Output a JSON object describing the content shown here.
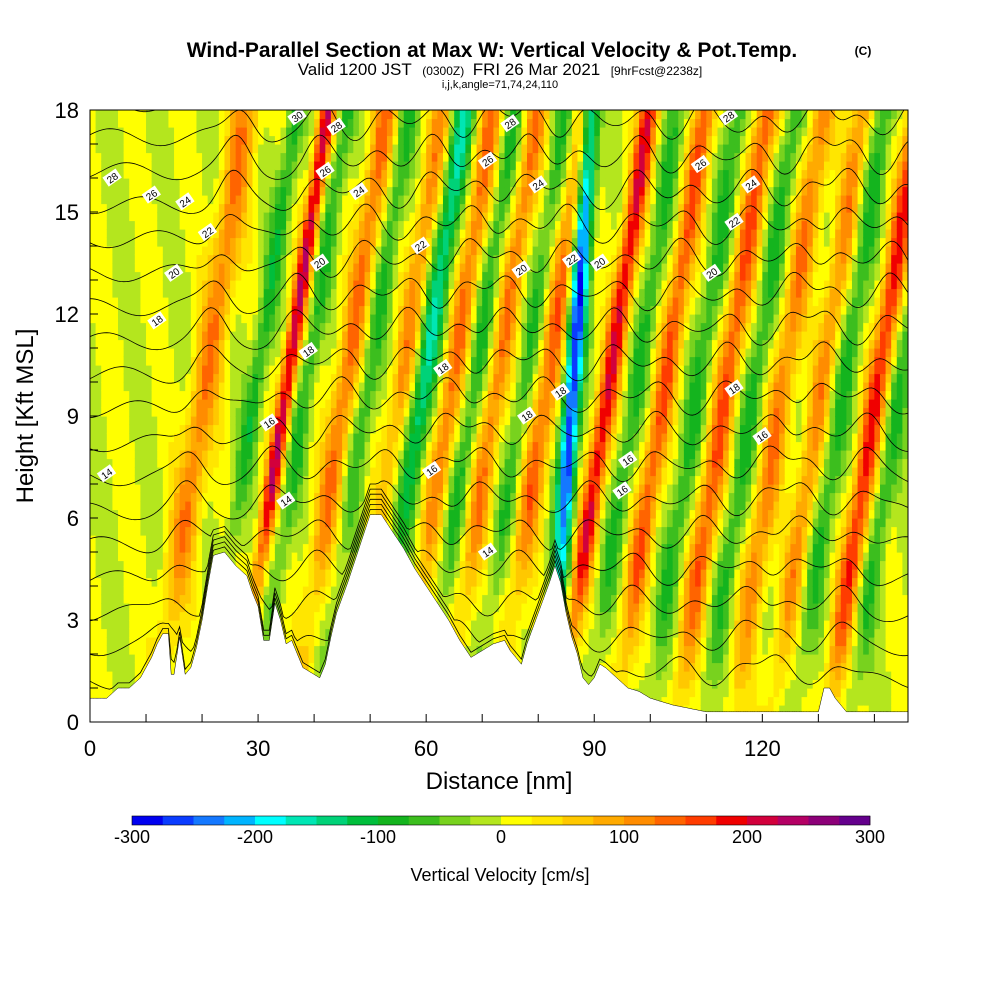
{
  "chart_data": {
    "type": "heatmap",
    "title": "Wind-Parallel Section at Max W: Vertical Velocity & Pot.Temp.",
    "title_badge": "(C)",
    "subtitle_parts": [
      "Valid 1200 JST",
      "(0300Z)",
      "FRI 26 Mar 2021",
      "[9hrFcst@2238z]"
    ],
    "subtitle2": "i,j,k,angle=71,74,24,110",
    "xlabel": "Distance [nm]",
    "ylabel": "Height [Kft MSL]",
    "xlim": [
      0,
      146
    ],
    "ylim": [
      0,
      18
    ],
    "x_ticks": [
      "0",
      "30",
      "60",
      "90",
      "120"
    ],
    "y_ticks": [
      "0",
      "3",
      "6",
      "9",
      "12",
      "15",
      "18"
    ],
    "colorbar": {
      "label": "Vertical Velocity [cm/s]",
      "min": -300,
      "max": 300,
      "step": 25,
      "ticks": [
        "-300",
        "-200",
        "-100",
        "0",
        "100",
        "200",
        "300"
      ],
      "colors": [
        "#0000f0",
        "#0a3cff",
        "#1478ff",
        "#00b4ff",
        "#00ffff",
        "#00e6b4",
        "#00d278",
        "#00be3c",
        "#14b41e",
        "#3cbe1e",
        "#78d21e",
        "#b4e61e",
        "#ffff00",
        "#ffe600",
        "#ffc800",
        "#ffaa00",
        "#ff8c00",
        "#ff6400",
        "#ff3c00",
        "#f00000",
        "#d2003c",
        "#b40064",
        "#8c0078",
        "#64008c"
      ]
    },
    "terrain_kft": [
      [
        0,
        0.7
      ],
      [
        3,
        0.7
      ],
      [
        5,
        1.0
      ],
      [
        7,
        1.0
      ],
      [
        9,
        1.3
      ],
      [
        10,
        1.6
      ],
      [
        11,
        1.9
      ],
      [
        12,
        2.3
      ],
      [
        13,
        2.6
      ],
      [
        14,
        2.6
      ],
      [
        14.5,
        1.4
      ],
      [
        15,
        1.4
      ],
      [
        16,
        2.5
      ],
      [
        17,
        1.4
      ],
      [
        18,
        1.6
      ],
      [
        19,
        2.2
      ],
      [
        20,
        3.0
      ],
      [
        21,
        4.0
      ],
      [
        22,
        4.9
      ],
      [
        24,
        5.0
      ],
      [
        26,
        4.6
      ],
      [
        28,
        4.3
      ],
      [
        29,
        3.8
      ],
      [
        30,
        3.4
      ],
      [
        31,
        2.4
      ],
      [
        32,
        2.4
      ],
      [
        33,
        3.5
      ],
      [
        34,
        3.0
      ],
      [
        35,
        2.3
      ],
      [
        36,
        2.4
      ],
      [
        38,
        1.6
      ],
      [
        40,
        1.4
      ],
      [
        41,
        1.3
      ],
      [
        42,
        1.7
      ],
      [
        43,
        2.5
      ],
      [
        44,
        3.2
      ],
      [
        46,
        4.1
      ],
      [
        48,
        5.1
      ],
      [
        50,
        6.1
      ],
      [
        52,
        6.1
      ],
      [
        54,
        5.6
      ],
      [
        56,
        5.1
      ],
      [
        58,
        4.5
      ],
      [
        60,
        4.0
      ],
      [
        62,
        3.5
      ],
      [
        64,
        3.0
      ],
      [
        66,
        2.4
      ],
      [
        68,
        1.9
      ],
      [
        70,
        2.1
      ],
      [
        72,
        2.3
      ],
      [
        74,
        2.4
      ],
      [
        75,
        2.1
      ],
      [
        76,
        1.9
      ],
      [
        77,
        1.7
      ],
      [
        78,
        2.3
      ],
      [
        80,
        3.2
      ],
      [
        82,
        4.1
      ],
      [
        83,
        4.6
      ],
      [
        84,
        4.1
      ],
      [
        85,
        3.2
      ],
      [
        86,
        2.5
      ],
      [
        87,
        2.0
      ],
      [
        88,
        1.3
      ],
      [
        89,
        1.1
      ],
      [
        90,
        1.3
      ],
      [
        91,
        1.7
      ],
      [
        92,
        1.6
      ],
      [
        94,
        1.3
      ],
      [
        96,
        1.0
      ],
      [
        98,
        0.9
      ],
      [
        100,
        0.7
      ],
      [
        102,
        0.6
      ],
      [
        104,
        0.5
      ],
      [
        110,
        0.3
      ],
      [
        115,
        0.3
      ],
      [
        120,
        0.3
      ],
      [
        130,
        0.3
      ],
      [
        131,
        1.0
      ],
      [
        132,
        1.0
      ],
      [
        133,
        0.7
      ],
      [
        134,
        0.5
      ],
      [
        135,
        0.3
      ],
      [
        146,
        0.3
      ]
    ],
    "updrafts": [
      {
        "x": 18,
        "amp": 120,
        "width": 2.6
      },
      {
        "x": 32.5,
        "amp": 220,
        "width": 1.4
      },
      {
        "x": 43,
        "amp": 130,
        "width": 2.2
      },
      {
        "x": 53,
        "amp": 110,
        "width": 2.0
      },
      {
        "x": 62,
        "amp": 130,
        "width": 2.0
      },
      {
        "x": 70,
        "amp": 120,
        "width": 2.0
      },
      {
        "x": 79,
        "amp": 140,
        "width": 2.2
      },
      {
        "x": 90,
        "amp": 200,
        "width": 1.8
      },
      {
        "x": 100,
        "amp": 150,
        "width": 2.0
      },
      {
        "x": 111,
        "amp": 150,
        "width": 2.2
      },
      {
        "x": 121,
        "amp": 120,
        "width": 2.2
      },
      {
        "x": 128,
        "amp": 110,
        "width": 2.0
      },
      {
        "x": 138,
        "amp": 180,
        "width": 2.0
      }
    ],
    "downdrafts": [
      {
        "x": 27,
        "amp": -90,
        "width": 1.6
      },
      {
        "x": 36,
        "amp": -80,
        "width": 1.6
      },
      {
        "x": 47,
        "amp": -80,
        "width": 1.8
      },
      {
        "x": 57,
        "amp": -150,
        "width": 2.0
      },
      {
        "x": 66,
        "amp": -80,
        "width": 1.8
      },
      {
        "x": 75,
        "amp": -70,
        "width": 1.8
      },
      {
        "x": 85,
        "amp": -280,
        "width": 1.6
      },
      {
        "x": 95,
        "amp": -80,
        "width": 1.8
      },
      {
        "x": 106,
        "amp": -80,
        "width": 2.0
      },
      {
        "x": 116,
        "amp": -80,
        "width": 2.0
      },
      {
        "x": 132,
        "amp": -80,
        "width": 2.0
      },
      {
        "x": 142,
        "amp": -80,
        "width": 1.8
      }
    ],
    "contour_labels": [
      {
        "text": "14",
        "x": 3,
        "y": 7.3
      },
      {
        "text": "14",
        "x": 35,
        "y": 6.5
      },
      {
        "text": "14",
        "x": 71,
        "y": 5.0
      },
      {
        "text": "16",
        "x": 32,
        "y": 8.8
      },
      {
        "text": "16",
        "x": 61,
        "y": 7.4
      },
      {
        "text": "16",
        "x": 96,
        "y": 7.7
      },
      {
        "text": "16",
        "x": 95,
        "y": 6.8
      },
      {
        "text": "16",
        "x": 120,
        "y": 8.4
      },
      {
        "text": "18",
        "x": 12,
        "y": 11.8
      },
      {
        "text": "18",
        "x": 39,
        "y": 10.9
      },
      {
        "text": "18",
        "x": 63,
        "y": 10.4
      },
      {
        "text": "18",
        "x": 78,
        "y": 9.0
      },
      {
        "text": "18",
        "x": 84,
        "y": 9.7
      },
      {
        "text": "18",
        "x": 115,
        "y": 9.8
      },
      {
        "text": "20",
        "x": 15,
        "y": 13.2
      },
      {
        "text": "20",
        "x": 41,
        "y": 13.5
      },
      {
        "text": "20",
        "x": 77,
        "y": 13.3
      },
      {
        "text": "20",
        "x": 91,
        "y": 13.5
      },
      {
        "text": "20",
        "x": 111,
        "y": 13.2
      },
      {
        "text": "22",
        "x": 21,
        "y": 14.4
      },
      {
        "text": "22",
        "x": 59,
        "y": 14.0
      },
      {
        "text": "22",
        "x": 86,
        "y": 13.6
      },
      {
        "text": "22",
        "x": 115,
        "y": 14.7
      },
      {
        "text": "24",
        "x": 17,
        "y": 15.3
      },
      {
        "text": "24",
        "x": 48,
        "y": 15.6
      },
      {
        "text": "24",
        "x": 80,
        "y": 15.8
      },
      {
        "text": "24",
        "x": 118,
        "y": 15.8
      },
      {
        "text": "26",
        "x": 11,
        "y": 15.5
      },
      {
        "text": "26",
        "x": 42,
        "y": 16.2
      },
      {
        "text": "26",
        "x": 71,
        "y": 16.5
      },
      {
        "text": "26",
        "x": 109,
        "y": 16.4
      },
      {
        "text": "28",
        "x": 4,
        "y": 16.0
      },
      {
        "text": "28",
        "x": 44,
        "y": 17.5
      },
      {
        "text": "28",
        "x": 75,
        "y": 17.6
      },
      {
        "text": "28",
        "x": 114,
        "y": 17.8
      },
      {
        "text": "30",
        "x": 37,
        "y": 17.8
      }
    ]
  }
}
